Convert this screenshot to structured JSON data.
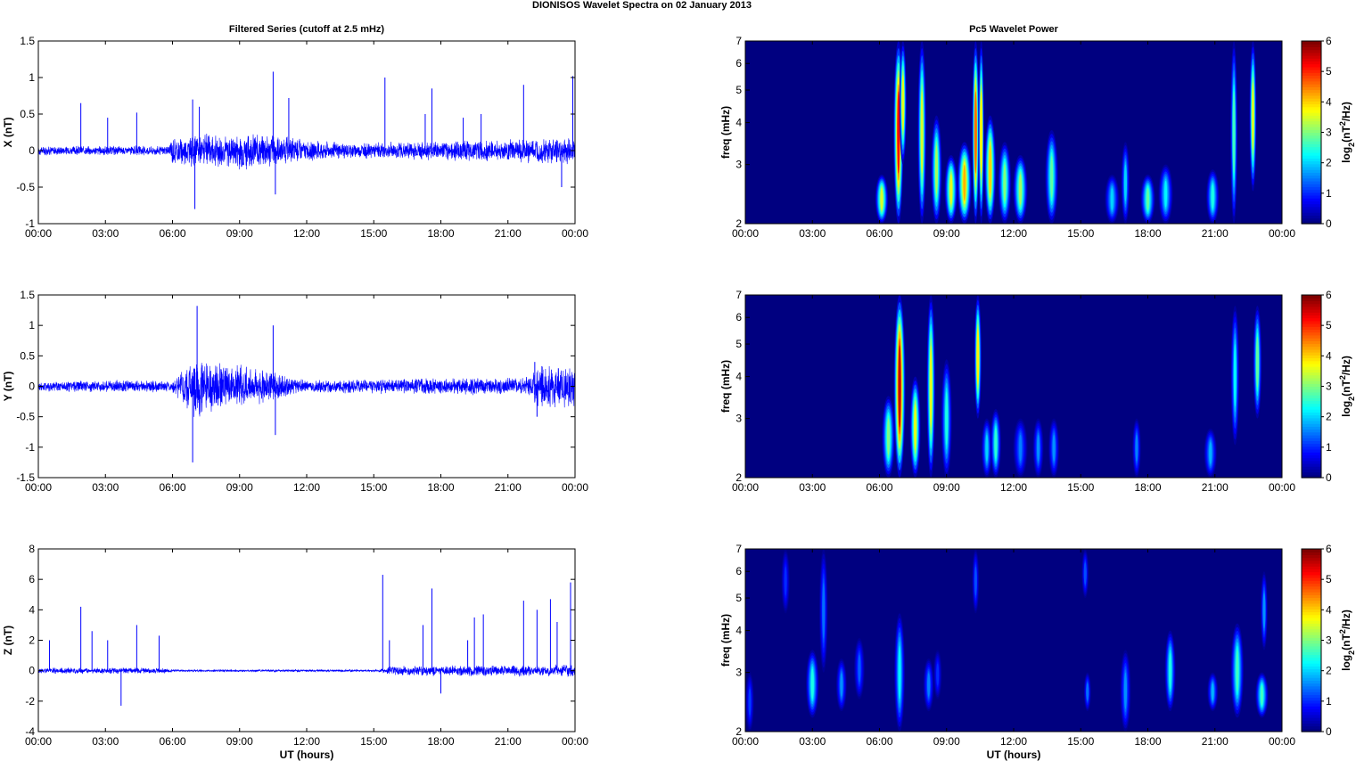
{
  "figure": {
    "suptitle": "DIONISOS Wavelet Spectra on 02 January   2013",
    "left_title": "Filtered Series (cutoff at 2.5 mHz)",
    "right_title": "Pc5 Wavelet Power",
    "xlabel": "UT (hours)",
    "line_color": "#0000ff",
    "colormap": "jet"
  },
  "chart_data": [
    {
      "type": "line",
      "panel": "X",
      "ylabel": "X (nT)",
      "x_tick_labels": [
        "00:00",
        "03:00",
        "06:00",
        "09:00",
        "12:00",
        "15:00",
        "18:00",
        "21:00",
        "00:00"
      ],
      "xlim_hours": [
        0,
        24
      ],
      "ylim": [
        -1,
        1.5
      ],
      "y_ticks": [
        -1,
        -0.5,
        0,
        0.5,
        1,
        1.5
      ],
      "noise": [
        [
          0,
          0.05
        ],
        [
          5.8,
          0.05
        ],
        [
          6,
          0.15
        ],
        [
          10,
          0.2
        ],
        [
          11.5,
          0.12
        ],
        [
          14,
          0.08
        ],
        [
          17,
          0.1
        ],
        [
          21,
          0.12
        ],
        [
          24,
          0.15
        ]
      ],
      "spikes": [
        [
          1.9,
          0.65
        ],
        [
          3.1,
          0.45
        ],
        [
          4.4,
          0.52
        ],
        [
          6.9,
          0.7
        ],
        [
          7.0,
          -0.8
        ],
        [
          7.2,
          0.6
        ],
        [
          10.5,
          1.08
        ],
        [
          10.6,
          -0.6
        ],
        [
          11.2,
          0.72
        ],
        [
          15.5,
          1.0
        ],
        [
          17.3,
          0.5
        ],
        [
          17.6,
          0.85
        ],
        [
          19.0,
          0.45
        ],
        [
          19.8,
          0.5
        ],
        [
          21.7,
          0.9
        ],
        [
          23.4,
          -0.5
        ],
        [
          23.9,
          1.02
        ]
      ]
    },
    {
      "type": "line",
      "panel": "Y",
      "ylabel": "Y (nT)",
      "x_tick_labels": [
        "00:00",
        "03:00",
        "06:00",
        "09:00",
        "12:00",
        "15:00",
        "18:00",
        "21:00",
        "00:00"
      ],
      "xlim_hours": [
        0,
        24
      ],
      "ylim": [
        -1.5,
        1.5
      ],
      "y_ticks": [
        -1.5,
        -1,
        -0.5,
        0,
        0.5,
        1,
        1.5
      ],
      "noise": [
        [
          0,
          0.07
        ],
        [
          6,
          0.08
        ],
        [
          6.8,
          0.35
        ],
        [
          7.2,
          0.4
        ],
        [
          8,
          0.3
        ],
        [
          10,
          0.25
        ],
        [
          11,
          0.15
        ],
        [
          12,
          0.08
        ],
        [
          22,
          0.12
        ],
        [
          22.3,
          0.3
        ],
        [
          24,
          0.25
        ]
      ],
      "spikes": [
        [
          6.9,
          -1.25
        ],
        [
          7.1,
          1.32
        ],
        [
          10.5,
          1.0
        ],
        [
          10.6,
          -0.8
        ],
        [
          22.2,
          0.4
        ],
        [
          22.3,
          -0.5
        ]
      ]
    },
    {
      "type": "line",
      "panel": "Z",
      "ylabel": "Z (nT)",
      "x_tick_labels": [
        "00:00",
        "03:00",
        "06:00",
        "09:00",
        "12:00",
        "15:00",
        "18:00",
        "21:00",
        "00:00"
      ],
      "xlim_hours": [
        0,
        24
      ],
      "ylim": [
        -4,
        8
      ],
      "y_ticks": [
        -4,
        -2,
        0,
        2,
        4,
        6,
        8
      ],
      "noise": [
        [
          0,
          0.15
        ],
        [
          5.5,
          0.15
        ],
        [
          6,
          0.06
        ],
        [
          15.2,
          0.06
        ],
        [
          15.6,
          0.25
        ],
        [
          24,
          0.3
        ]
      ],
      "spikes": [
        [
          0.5,
          2.0
        ],
        [
          1.9,
          4.2
        ],
        [
          2.4,
          2.6
        ],
        [
          3.1,
          2.0
        ],
        [
          3.7,
          -2.3
        ],
        [
          4.4,
          3.0
        ],
        [
          5.4,
          2.3
        ],
        [
          15.4,
          6.3
        ],
        [
          15.7,
          2.0
        ],
        [
          17.2,
          3.0
        ],
        [
          17.6,
          5.4
        ],
        [
          18.0,
          -1.5
        ],
        [
          19.2,
          2.0
        ],
        [
          19.5,
          3.5
        ],
        [
          19.9,
          3.7
        ],
        [
          21.7,
          4.6
        ],
        [
          22.3,
          4.0
        ],
        [
          22.9,
          4.7
        ],
        [
          23.2,
          3.2
        ],
        [
          23.8,
          5.8
        ],
        [
          24.0,
          4.3
        ]
      ]
    },
    {
      "type": "heatmap",
      "panel": "X",
      "ylabel": "freq (mHz)",
      "x_tick_labels": [
        "00:00",
        "03:00",
        "06:00",
        "09:00",
        "12:00",
        "15:00",
        "18:00",
        "21:00",
        "00:00"
      ],
      "y_scale": "log",
      "y_ticks": [
        2,
        3,
        4,
        5,
        6,
        7
      ],
      "clim": [
        0,
        6
      ],
      "colorbar_label": "log2(nT2/Hz)",
      "colorbar_ticks": [
        0,
        1,
        2,
        3,
        4,
        5,
        6
      ],
      "blobs": [
        [
          6.1,
          2.0,
          2.8,
          0.18,
          0.45,
          3.5
        ],
        [
          6.85,
          2.0,
          7.0,
          0.14,
          0.5,
          5.2
        ],
        [
          7.05,
          3.0,
          7.0,
          0.1,
          0.5,
          3.6
        ],
        [
          7.9,
          2.0,
          7.0,
          0.12,
          0.5,
          3.5
        ],
        [
          8.55,
          2.0,
          4.2,
          0.15,
          0.45,
          3.2
        ],
        [
          9.2,
          2.0,
          3.2,
          0.18,
          0.45,
          3.6
        ],
        [
          9.8,
          2.0,
          3.5,
          0.2,
          0.45,
          4.2
        ],
        [
          10.3,
          2.0,
          7.0,
          0.1,
          0.5,
          4.6
        ],
        [
          10.55,
          2.0,
          7.0,
          0.08,
          0.45,
          3.8
        ],
        [
          10.95,
          2.0,
          4.2,
          0.16,
          0.45,
          4.0
        ],
        [
          11.6,
          2.0,
          3.5,
          0.18,
          0.45,
          3.0
        ],
        [
          12.3,
          2.0,
          3.2,
          0.2,
          0.4,
          3.2
        ],
        [
          13.7,
          2.0,
          3.8,
          0.18,
          0.45,
          2.8
        ],
        [
          16.4,
          2.0,
          2.8,
          0.2,
          0.35,
          2.0
        ],
        [
          17.0,
          2.0,
          3.5,
          0.12,
          0.45,
          2.0
        ],
        [
          18.0,
          2.0,
          2.8,
          0.2,
          0.35,
          2.8
        ],
        [
          18.8,
          2.0,
          3.0,
          0.2,
          0.35,
          2.2
        ],
        [
          20.9,
          2.0,
          2.9,
          0.18,
          0.35,
          2.4
        ],
        [
          21.85,
          2.0,
          7.0,
          0.1,
          0.5,
          2.6
        ],
        [
          22.7,
          2.5,
          7.0,
          0.1,
          0.5,
          3.5
        ]
      ]
    },
    {
      "type": "heatmap",
      "panel": "Y",
      "ylabel": "freq (mHz)",
      "x_tick_labels": [
        "00:00",
        "03:00",
        "06:00",
        "09:00",
        "12:00",
        "15:00",
        "18:00",
        "21:00",
        "00:00"
      ],
      "y_scale": "log",
      "y_ticks": [
        2,
        3,
        4,
        5,
        6,
        7
      ],
      "clim": [
        0,
        6
      ],
      "colorbar_label": "log2(nT2/Hz)",
      "colorbar_ticks": [
        0,
        1,
        2,
        3,
        4,
        5,
        6
      ],
      "blobs": [
        [
          6.4,
          2.0,
          3.5,
          0.18,
          0.45,
          3.0
        ],
        [
          6.9,
          2.0,
          7.0,
          0.16,
          0.5,
          5.6
        ],
        [
          7.6,
          2.0,
          4.0,
          0.15,
          0.45,
          3.6
        ],
        [
          8.3,
          2.0,
          7.0,
          0.12,
          0.5,
          3.6
        ],
        [
          9.0,
          2.0,
          4.5,
          0.15,
          0.45,
          2.4
        ],
        [
          10.4,
          3.0,
          7.0,
          0.1,
          0.5,
          3.8
        ],
        [
          10.8,
          2.0,
          3.0,
          0.15,
          0.4,
          2.0
        ],
        [
          11.2,
          2.0,
          3.2,
          0.15,
          0.4,
          2.5
        ],
        [
          12.3,
          2.0,
          3.0,
          0.2,
          0.35,
          1.5
        ],
        [
          13.1,
          2.0,
          3.0,
          0.15,
          0.35,
          1.6
        ],
        [
          13.8,
          2.0,
          3.0,
          0.15,
          0.35,
          1.6
        ],
        [
          17.5,
          2.0,
          3.0,
          0.12,
          0.35,
          1.5
        ],
        [
          20.8,
          2.0,
          2.8,
          0.18,
          0.35,
          1.8
        ],
        [
          21.9,
          2.5,
          6.5,
          0.12,
          0.5,
          2.2
        ],
        [
          22.9,
          3.0,
          6.5,
          0.12,
          0.5,
          2.8
        ]
      ]
    },
    {
      "type": "heatmap",
      "panel": "Z",
      "ylabel": "freq (mHz)",
      "x_tick_labels": [
        "00:00",
        "03:00",
        "06:00",
        "09:00",
        "12:00",
        "15:00",
        "18:00",
        "21:00",
        "00:00"
      ],
      "y_scale": "log",
      "y_ticks": [
        2,
        3,
        4,
        5,
        6,
        7
      ],
      "clim": [
        0,
        6
      ],
      "colorbar_label": "log2(nT2/Hz)",
      "colorbar_ticks": [
        0,
        1,
        2,
        3,
        4,
        5,
        6
      ],
      "blobs": [
        [
          0.2,
          2.0,
          3.0,
          0.12,
          0.4,
          1.1
        ],
        [
          1.8,
          4.5,
          7.0,
          0.12,
          0.45,
          1.0
        ],
        [
          3.0,
          2.2,
          3.5,
          0.18,
          0.4,
          2.4
        ],
        [
          3.5,
          3.0,
          7.0,
          0.12,
          0.5,
          1.4
        ],
        [
          4.3,
          2.3,
          3.3,
          0.15,
          0.4,
          1.6
        ],
        [
          5.1,
          2.5,
          3.8,
          0.15,
          0.4,
          1.3
        ],
        [
          6.9,
          2.0,
          4.5,
          0.15,
          0.45,
          2.2
        ],
        [
          8.2,
          2.3,
          3.3,
          0.15,
          0.4,
          1.5
        ],
        [
          8.6,
          2.5,
          3.5,
          0.12,
          0.4,
          1.0
        ],
        [
          10.3,
          4.5,
          7.0,
          0.1,
          0.45,
          1.2
        ],
        [
          15.2,
          5.0,
          7.0,
          0.1,
          0.45,
          1.2
        ],
        [
          15.3,
          2.3,
          3.0,
          0.1,
          0.35,
          1.4
        ],
        [
          17.0,
          2.0,
          3.5,
          0.15,
          0.45,
          1.6
        ],
        [
          19.0,
          2.3,
          4.0,
          0.15,
          0.45,
          2.4
        ],
        [
          20.9,
          2.3,
          3.0,
          0.15,
          0.4,
          1.8
        ],
        [
          22.0,
          2.2,
          4.2,
          0.18,
          0.45,
          2.6
        ],
        [
          23.1,
          2.2,
          3.0,
          0.18,
          0.4,
          2.6
        ],
        [
          23.2,
          3.5,
          6.0,
          0.1,
          0.45,
          1.6
        ]
      ]
    }
  ]
}
